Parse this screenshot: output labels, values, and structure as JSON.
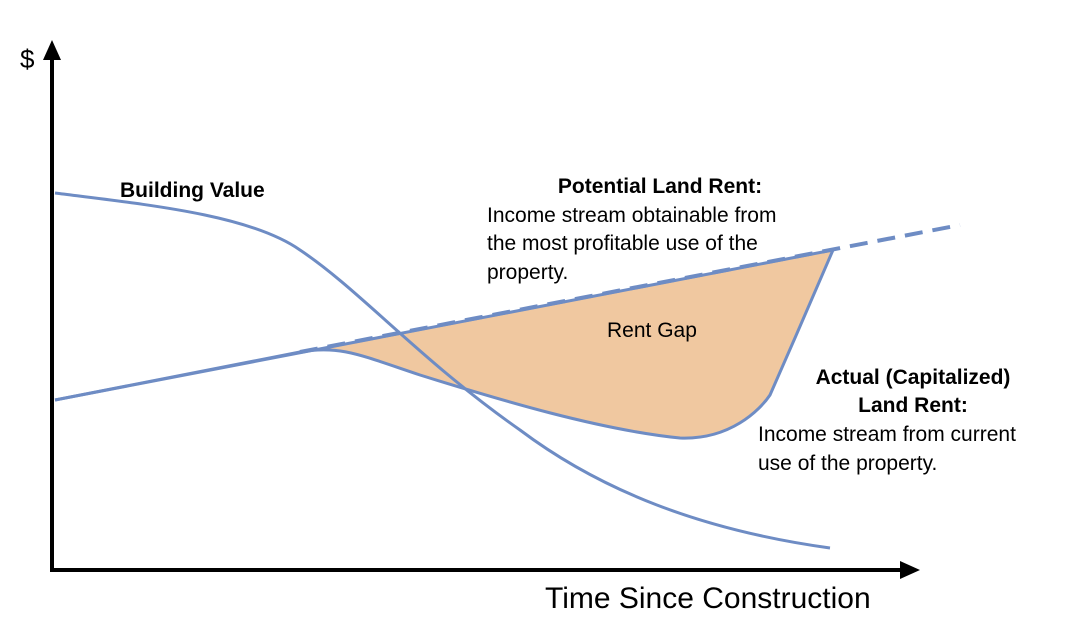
{
  "axes": {
    "y_label": "$",
    "x_label": "Time Since Construction"
  },
  "building_value": {
    "label": "Building Value"
  },
  "potential_land_rent": {
    "title": "Potential Land Rent:",
    "lines": [
      "Income stream obtainable from",
      "the most profitable use of the",
      "property."
    ]
  },
  "rent_gap": {
    "label": "Rent Gap"
  },
  "actual_land_rent": {
    "title_lines": [
      "Actual (Capitalized)",
      "Land Rent:"
    ],
    "lines": [
      "Income stream from current",
      "use of the property."
    ]
  }
}
